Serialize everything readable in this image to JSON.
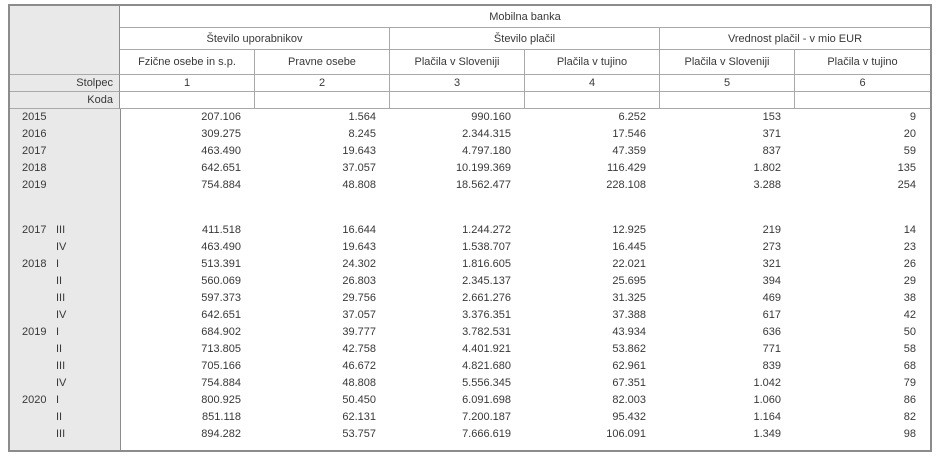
{
  "chart_data": {
    "type": "table",
    "title": "Mobilna banka",
    "row_header": {
      "stolpec": "Stolpec",
      "koda": "Koda"
    },
    "groups": [
      {
        "label": "Število uporabnikov",
        "columns": [
          "Fzične osebe in s.p.",
          "Pravne osebe"
        ]
      },
      {
        "label": "Število plačil",
        "columns": [
          "Plačila v Sloveniji",
          "Plačila v tujino"
        ]
      },
      {
        "label": "Vrednost plačil  - v mio EUR",
        "columns": [
          "Plačila v Sloveniji",
          "Plačila v tujino"
        ]
      }
    ],
    "column_numbers": [
      "1",
      "2",
      "3",
      "4",
      "5",
      "6"
    ],
    "annual_rows": [
      {
        "year": "2015",
        "quarter": "",
        "values": [
          "207.106",
          "1.564",
          "990.160",
          "6.252",
          "153",
          "9"
        ]
      },
      {
        "year": "2016",
        "quarter": "",
        "values": [
          "309.275",
          "8.245",
          "2.344.315",
          "17.546",
          "371",
          "20"
        ]
      },
      {
        "year": "2017",
        "quarter": "",
        "values": [
          "463.490",
          "19.643",
          "4.797.180",
          "47.359",
          "837",
          "59"
        ]
      },
      {
        "year": "2018",
        "quarter": "",
        "values": [
          "642.651",
          "37.057",
          "10.199.369",
          "116.429",
          "1.802",
          "135"
        ]
      },
      {
        "year": "2019",
        "quarter": "",
        "values": [
          "754.884",
          "48.808",
          "18.562.477",
          "228.108",
          "3.288",
          "254"
        ]
      }
    ],
    "quarterly_rows": [
      {
        "year": "2017",
        "quarter": "III",
        "values": [
          "411.518",
          "16.644",
          "1.244.272",
          "12.925",
          "219",
          "14"
        ]
      },
      {
        "year": "",
        "quarter": "IV",
        "values": [
          "463.490",
          "19.643",
          "1.538.707",
          "16.445",
          "273",
          "23"
        ]
      },
      {
        "year": "2018",
        "quarter": "I",
        "values": [
          "513.391",
          "24.302",
          "1.816.605",
          "22.021",
          "321",
          "26"
        ]
      },
      {
        "year": "",
        "quarter": "II",
        "values": [
          "560.069",
          "26.803",
          "2.345.137",
          "25.695",
          "394",
          "29"
        ]
      },
      {
        "year": "",
        "quarter": "III",
        "values": [
          "597.373",
          "29.756",
          "2.661.276",
          "31.325",
          "469",
          "38"
        ]
      },
      {
        "year": "",
        "quarter": "IV",
        "values": [
          "642.651",
          "37.057",
          "3.376.351",
          "37.388",
          "617",
          "42"
        ]
      },
      {
        "year": "2019",
        "quarter": "I",
        "values": [
          "684.902",
          "39.777",
          "3.782.531",
          "43.934",
          "636",
          "50"
        ]
      },
      {
        "year": "",
        "quarter": "II",
        "values": [
          "713.805",
          "42.758",
          "4.401.921",
          "53.862",
          "771",
          "58"
        ]
      },
      {
        "year": "",
        "quarter": "III",
        "values": [
          "705.166",
          "46.672",
          "4.821.680",
          "62.961",
          "839",
          "68"
        ]
      },
      {
        "year": "",
        "quarter": "IV",
        "values": [
          "754.884",
          "48.808",
          "5.556.345",
          "67.351",
          "1.042",
          "79"
        ]
      },
      {
        "year": "2020",
        "quarter": "I",
        "values": [
          "800.925",
          "50.450",
          "6.091.698",
          "82.003",
          "1.060",
          "86"
        ]
      },
      {
        "year": "",
        "quarter": "II",
        "values": [
          "851.118",
          "62.131",
          "7.200.187",
          "95.432",
          "1.164",
          "82"
        ]
      },
      {
        "year": "",
        "quarter": "III",
        "values": [
          "894.282",
          "53.757",
          "7.666.619",
          "106.091",
          "1.349",
          "98"
        ]
      }
    ]
  },
  "colors": {
    "header_fill": "#e9e9e9",
    "border_outer": "#8c8c8c",
    "border_inner": "#a9a9a9",
    "text": "#383838",
    "background": "#ffffff"
  }
}
